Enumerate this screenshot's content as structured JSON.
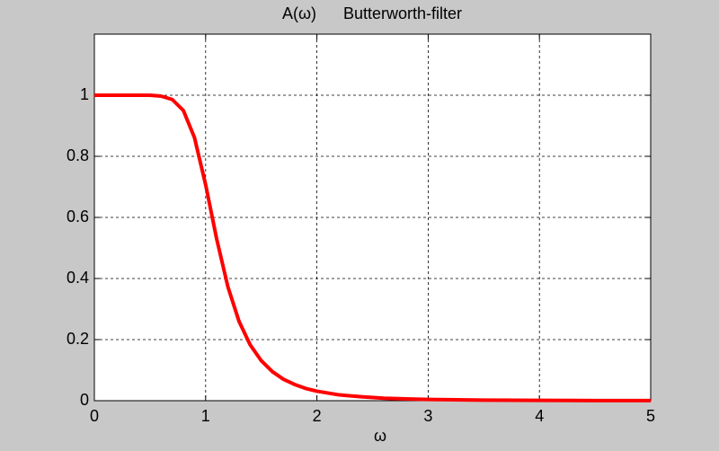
{
  "chart_data": {
    "type": "line",
    "title": "A(ω)      Butterworth-filter",
    "x_label": "ω",
    "x": [
      0,
      0.1,
      0.2,
      0.3,
      0.4,
      0.5,
      0.6,
      0.7,
      0.8,
      0.9,
      1.0,
      1.1,
      1.2,
      1.3,
      1.4,
      1.5,
      1.6,
      1.7,
      1.8,
      1.9,
      2.0,
      2.2,
      2.4,
      2.6,
      2.8,
      3.0,
      3.5,
      4.0,
      4.5,
      5.0
    ],
    "series": [
      {
        "color": "#ff0000",
        "values": [
          1,
          1,
          1,
          1,
          1,
          1,
          0.997,
          0.986,
          0.95,
          0.861,
          0.707,
          0.528,
          0.373,
          0.26,
          0.183,
          0.131,
          0.095,
          0.07,
          0.053,
          0.04,
          0.031,
          0.019,
          0.013,
          0.008,
          0.006,
          0.004,
          0.002,
          0.001,
          0.0005,
          0.0003
        ]
      }
    ],
    "xlim": [
      0,
      5
    ],
    "ylim": [
      0,
      1.2
    ],
    "xticks": [
      0,
      1,
      2,
      3,
      4,
      5
    ],
    "yticks": [
      0,
      0.2,
      0.4,
      0.6,
      0.8,
      1
    ],
    "grid": true
  }
}
